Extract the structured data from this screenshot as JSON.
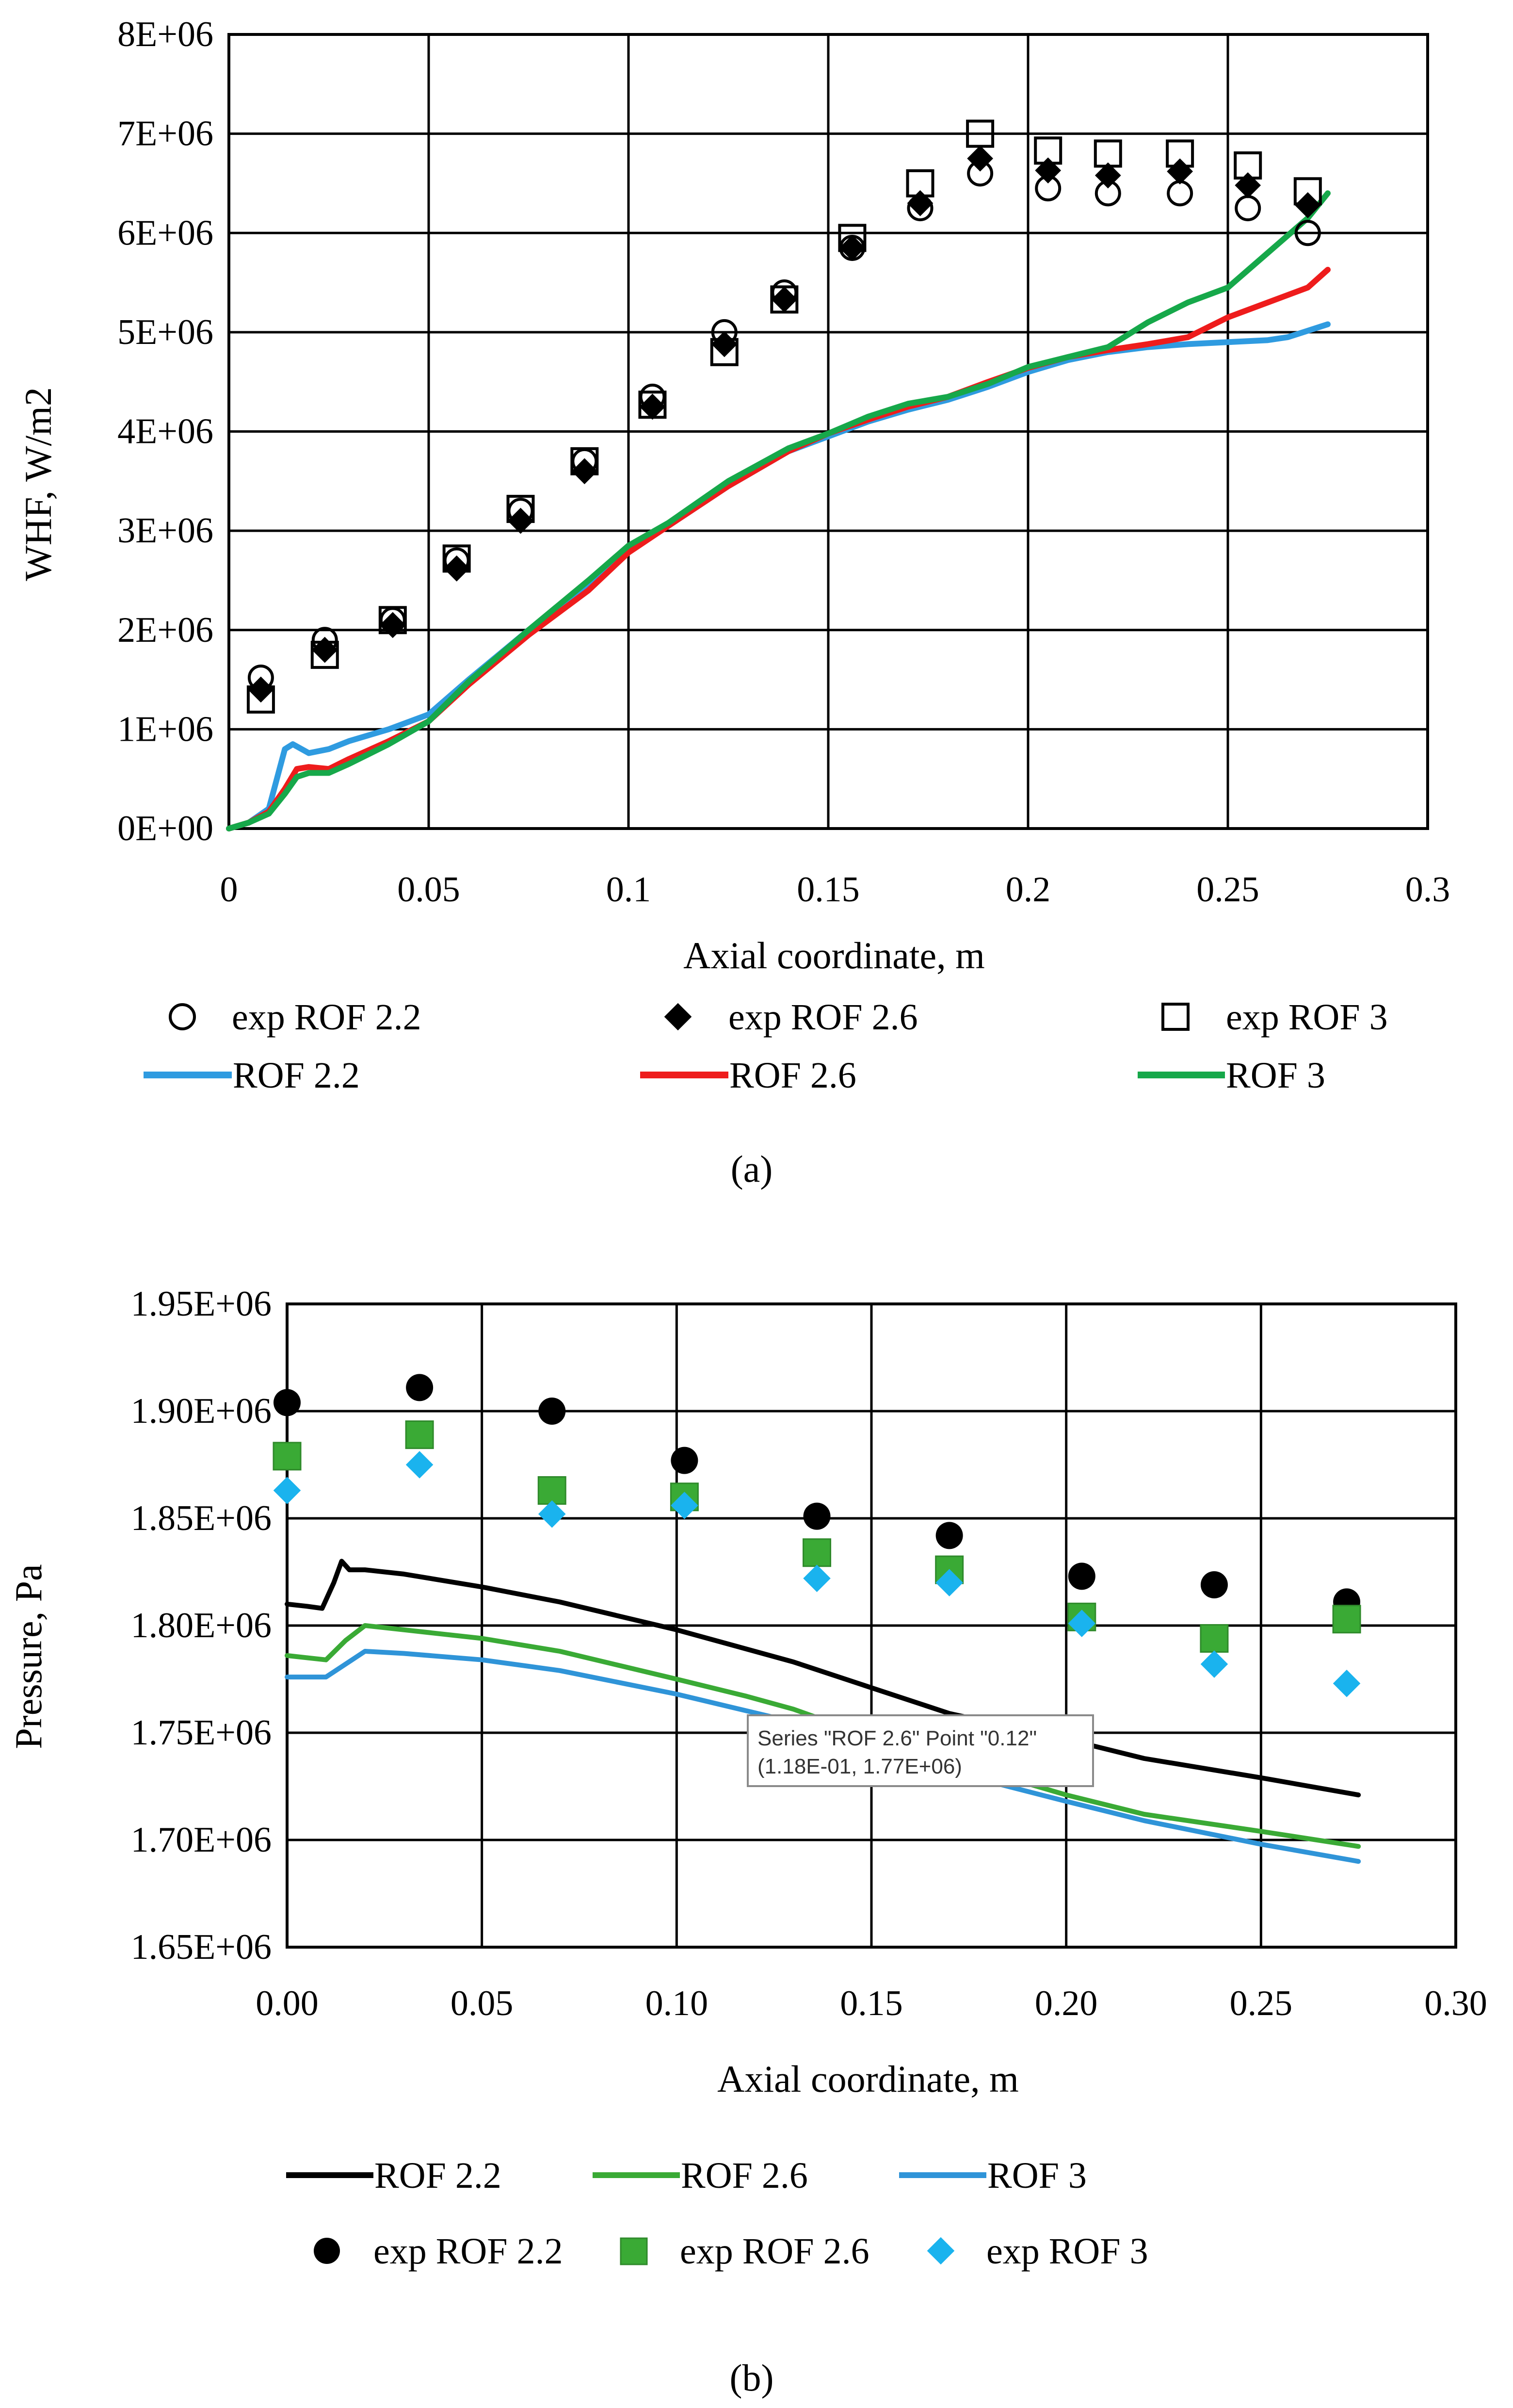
{
  "chart_data": [
    {
      "type": "line",
      "panel_label": "a",
      "xlabel": "Axial coordinate, m",
      "ylabel": "WHF, W/m2",
      "xlim": [
        0,
        0.3
      ],
      "ylim": [
        0,
        8000000
      ],
      "xticks": [
        0,
        0.05,
        0.1,
        0.15,
        0.2,
        0.25,
        0.3
      ],
      "xtick_labels": [
        "0",
        "0.05",
        "0.1",
        "0.15",
        "0.2",
        "0.25",
        "0.3"
      ],
      "yticks": [
        0,
        1000000,
        2000000,
        3000000,
        4000000,
        5000000,
        6000000,
        7000000,
        8000000
      ],
      "ytick_labels": [
        "0E+00",
        "1E+06",
        "2E+06",
        "3E+06",
        "4E+06",
        "5E+06",
        "6E+06",
        "7E+06",
        "8E+06"
      ],
      "grid": true,
      "legend_position": "bottom",
      "colors": {
        "rof22": "#2f9be0",
        "rof26": "#ee1c1c",
        "rof3": "#16a84a",
        "markers": "#000000"
      },
      "series": [
        {
          "name": "exp ROF 2.2",
          "kind": "scatter",
          "marker": "open-circle",
          "x": [
            0.008,
            0.024,
            0.041,
            0.057,
            0.073,
            0.089,
            0.106,
            0.124,
            0.139,
            0.156,
            0.173,
            0.188,
            0.205,
            0.22,
            0.238,
            0.255,
            0.27
          ],
          "y": [
            1520000,
            1900000,
            2100000,
            2700000,
            3200000,
            3700000,
            4350000,
            5000000,
            5400000,
            5850000,
            6250000,
            6600000,
            6450000,
            6400000,
            6400000,
            6250000,
            6000000
          ]
        },
        {
          "name": "exp ROF 2.6",
          "kind": "scatter",
          "marker": "filled-diamond",
          "x": [
            0.008,
            0.024,
            0.041,
            0.057,
            0.073,
            0.089,
            0.106,
            0.124,
            0.139,
            0.156,
            0.173,
            0.188,
            0.205,
            0.22,
            0.238,
            0.255,
            0.27
          ],
          "y": [
            1400000,
            1800000,
            2050000,
            2620000,
            3100000,
            3600000,
            4250000,
            4880000,
            5330000,
            5850000,
            6300000,
            6750000,
            6630000,
            6580000,
            6620000,
            6480000,
            6280000
          ]
        },
        {
          "name": "exp ROF 3",
          "kind": "scatter",
          "marker": "open-square",
          "x": [
            0.008,
            0.024,
            0.041,
            0.057,
            0.073,
            0.089,
            0.106,
            0.124,
            0.139,
            0.156,
            0.173,
            0.188,
            0.205,
            0.22,
            0.238,
            0.255,
            0.27
          ],
          "y": [
            1300000,
            1750000,
            2100000,
            2720000,
            3220000,
            3700000,
            4270000,
            4800000,
            5330000,
            5950000,
            6500000,
            7000000,
            6830000,
            6800000,
            6800000,
            6680000,
            6420000
          ]
        },
        {
          "name": "ROF 2.2",
          "kind": "line",
          "x": [
            0,
            0.005,
            0.01,
            0.012,
            0.014,
            0.016,
            0.02,
            0.025,
            0.03,
            0.04,
            0.05,
            0.06,
            0.075,
            0.09,
            0.1,
            0.11,
            0.125,
            0.14,
            0.15,
            0.16,
            0.17,
            0.18,
            0.19,
            0.2,
            0.21,
            0.22,
            0.23,
            0.24,
            0.25,
            0.26,
            0.265,
            0.275
          ],
          "y": [
            0,
            60000,
            200000,
            500000,
            800000,
            850000,
            760000,
            800000,
            880000,
            1000000,
            1150000,
            1500000,
            2000000,
            2450000,
            2800000,
            3050000,
            3450000,
            3800000,
            3950000,
            4100000,
            4220000,
            4320000,
            4450000,
            4600000,
            4720000,
            4800000,
            4850000,
            4880000,
            4900000,
            4920000,
            4950000,
            5080000
          ]
        },
        {
          "name": "ROF 2.6",
          "kind": "line",
          "x": [
            0,
            0.005,
            0.01,
            0.014,
            0.017,
            0.02,
            0.025,
            0.03,
            0.04,
            0.05,
            0.06,
            0.075,
            0.09,
            0.1,
            0.11,
            0.125,
            0.14,
            0.15,
            0.16,
            0.17,
            0.18,
            0.19,
            0.2,
            0.21,
            0.22,
            0.23,
            0.24,
            0.25,
            0.26,
            0.27,
            0.275
          ],
          "y": [
            0,
            60000,
            170000,
            400000,
            600000,
            620000,
            600000,
            700000,
            880000,
            1080000,
            1450000,
            1950000,
            2400000,
            2780000,
            3050000,
            3450000,
            3800000,
            3980000,
            4120000,
            4250000,
            4350000,
            4500000,
            4640000,
            4750000,
            4820000,
            4880000,
            4950000,
            5150000,
            5300000,
            5450000,
            5630000
          ]
        },
        {
          "name": "ROF 3",
          "kind": "line",
          "x": [
            0,
            0.005,
            0.01,
            0.014,
            0.017,
            0.02,
            0.025,
            0.03,
            0.04,
            0.05,
            0.06,
            0.075,
            0.09,
            0.1,
            0.11,
            0.125,
            0.14,
            0.15,
            0.16,
            0.17,
            0.18,
            0.19,
            0.2,
            0.21,
            0.22,
            0.23,
            0.24,
            0.25,
            0.26,
            0.27,
            0.275
          ],
          "y": [
            0,
            60000,
            150000,
            350000,
            520000,
            560000,
            560000,
            650000,
            850000,
            1080000,
            1480000,
            2000000,
            2500000,
            2850000,
            3080000,
            3500000,
            3830000,
            3980000,
            4150000,
            4280000,
            4350000,
            4480000,
            4650000,
            4750000,
            4850000,
            5100000,
            5300000,
            5450000,
            5800000,
            6150000,
            6400000
          ]
        }
      ]
    },
    {
      "type": "line",
      "panel_label": "b",
      "xlabel": "Axial coordinate, m",
      "ylabel": "Pressure, Pa",
      "xlim": [
        0,
        0.3
      ],
      "ylim": [
        1650000,
        1950000
      ],
      "xticks": [
        0,
        0.05,
        0.1,
        0.15,
        0.2,
        0.25,
        0.3
      ],
      "xtick_labels": [
        "0.00",
        "0.05",
        "0.10",
        "0.15",
        "0.20",
        "0.25",
        "0.30"
      ],
      "yticks": [
        1650000,
        1700000,
        1750000,
        1800000,
        1850000,
        1900000,
        1950000
      ],
      "ytick_labels": [
        "1.65E+06",
        "1.70E+06",
        "1.75E+06",
        "1.80E+06",
        "1.85E+06",
        "1.90E+06",
        "1.95E+06"
      ],
      "grid": true,
      "legend_position": "bottom",
      "colors": {
        "rof22": "#000000",
        "rof26": "#3aaa35",
        "rof3": "#2f94d8",
        "exp26": "#3aaa35",
        "exp3": "#1ab3ee"
      },
      "tooltip": {
        "line1": "Series \"ROF 2.6\" Point \"0.12\"",
        "line2": "(1.18E-01, 1.77E+06)",
        "anchor_x": 0.118,
        "anchor_y": 1770000
      },
      "series": [
        {
          "name": "ROF 2.2",
          "kind": "line",
          "x": [
            0,
            0.005,
            0.009,
            0.012,
            0.014,
            0.016,
            0.02,
            0.03,
            0.05,
            0.07,
            0.1,
            0.13,
            0.15,
            0.17,
            0.2,
            0.22,
            0.25,
            0.275
          ],
          "y": [
            1810000,
            1809000,
            1808000,
            1820000,
            1830000,
            1826000,
            1826000,
            1824000,
            1818000,
            1811000,
            1798000,
            1783000,
            1771000,
            1759000,
            1747000,
            1738000,
            1729000,
            1721000
          ]
        },
        {
          "name": "ROF 2.6",
          "kind": "line",
          "x": [
            0,
            0.005,
            0.01,
            0.015,
            0.02,
            0.03,
            0.05,
            0.07,
            0.1,
            0.118,
            0.13,
            0.15,
            0.17,
            0.2,
            0.22,
            0.25,
            0.275
          ],
          "y": [
            1786000,
            1785000,
            1784000,
            1793000,
            1800000,
            1798000,
            1794000,
            1788000,
            1775000,
            1767000,
            1761000,
            1748000,
            1737000,
            1721000,
            1712000,
            1704000,
            1697000
          ]
        },
        {
          "name": "ROF 3",
          "kind": "line",
          "x": [
            0,
            0.005,
            0.01,
            0.015,
            0.02,
            0.03,
            0.05,
            0.07,
            0.1,
            0.13,
            0.15,
            0.17,
            0.2,
            0.22,
            0.25,
            0.275
          ],
          "y": [
            1776000,
            1776000,
            1776000,
            1782000,
            1788000,
            1787000,
            1784000,
            1779000,
            1768000,
            1755000,
            1744000,
            1732000,
            1718000,
            1709000,
            1698000,
            1690000
          ]
        },
        {
          "name": "exp ROF 2.2",
          "kind": "scatter",
          "marker": "filled-circle",
          "x": [
            0,
            0.034,
            0.068,
            0.102,
            0.136,
            0.17,
            0.204,
            0.238,
            0.272
          ],
          "y": [
            1904000,
            1911000,
            1900000,
            1877000,
            1851000,
            1842000,
            1823000,
            1819000,
            1811000
          ]
        },
        {
          "name": "exp ROF 2.6",
          "kind": "scatter",
          "marker": "filled-square",
          "x": [
            0,
            0.034,
            0.068,
            0.102,
            0.136,
            0.17,
            0.204,
            0.238,
            0.272
          ],
          "y": [
            1879000,
            1889000,
            1863000,
            1860000,
            1834000,
            1826000,
            1804000,
            1794000,
            1803000
          ]
        },
        {
          "name": "exp ROF 3",
          "kind": "scatter",
          "marker": "filled-diamond",
          "x": [
            0,
            0.034,
            0.068,
            0.102,
            0.136,
            0.17,
            0.204,
            0.238,
            0.272
          ],
          "y": [
            1863000,
            1875000,
            1852000,
            1856000,
            1822000,
            1820000,
            1801000,
            1782000,
            1773000
          ]
        }
      ]
    }
  ],
  "legend_a": {
    "row1": [
      "exp ROF 2.2",
      "exp ROF 2.6",
      "exp ROF 3"
    ],
    "row2": [
      "ROF 2.2",
      "ROF 2.6",
      "ROF 3"
    ]
  },
  "legend_b": {
    "row1": [
      "ROF 2.2",
      "ROF 2.6",
      "ROF 3"
    ],
    "row2": [
      "exp ROF 2.2",
      "exp ROF 2.6",
      "exp ROF 3"
    ]
  },
  "captions": {
    "a": "(a)",
    "b": "(b)"
  }
}
